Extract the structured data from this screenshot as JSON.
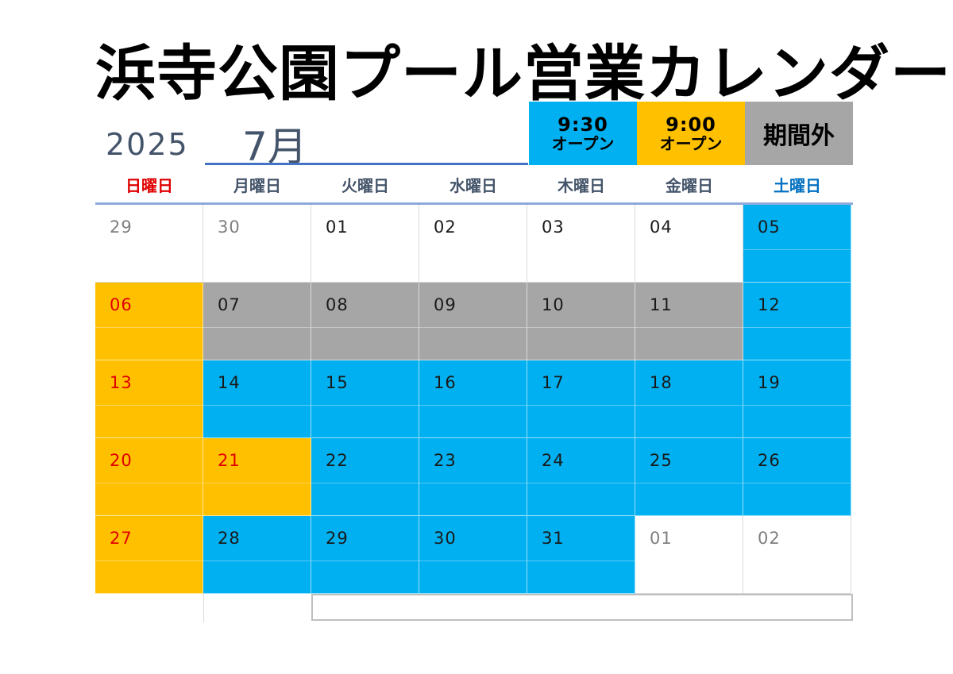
{
  "title": "浜寺公園プール営業カレンダー",
  "year": "2025",
  "month": "7月",
  "colors": {
    "blue": "#00b0f0",
    "orange": "#ffc000",
    "gray": "#a6a6a6",
    "white": "#ffffff",
    "sunday_red": "#e00000",
    "saturday_blue": "#0070c0",
    "muted": "#7f7f7f"
  },
  "legend": {
    "open930": {
      "time": "9:30",
      "label": "オープン"
    },
    "open900": {
      "time": "9:00",
      "label": "オープン"
    },
    "off": {
      "label": "期間外"
    }
  },
  "weekdays": [
    "日曜日",
    "月曜日",
    "火曜日",
    "水曜日",
    "木曜日",
    "金曜日",
    "土曜日"
  ],
  "weeks": [
    [
      {
        "day": "29",
        "type": "white",
        "text": "muted"
      },
      {
        "day": "30",
        "type": "white",
        "text": "muted"
      },
      {
        "day": "01",
        "type": "white",
        "text": "dark"
      },
      {
        "day": "02",
        "type": "white",
        "text": "dark"
      },
      {
        "day": "03",
        "type": "white",
        "text": "dark"
      },
      {
        "day": "04",
        "type": "white",
        "text": "dark"
      },
      {
        "day": "05",
        "type": "blue",
        "text": "dark"
      }
    ],
    [
      {
        "day": "06",
        "type": "orange",
        "text": "red"
      },
      {
        "day": "07",
        "type": "gray",
        "text": "dark"
      },
      {
        "day": "08",
        "type": "gray",
        "text": "dark"
      },
      {
        "day": "09",
        "type": "gray",
        "text": "dark"
      },
      {
        "day": "10",
        "type": "gray",
        "text": "dark"
      },
      {
        "day": "11",
        "type": "gray",
        "text": "dark"
      },
      {
        "day": "12",
        "type": "blue",
        "text": "dark"
      }
    ],
    [
      {
        "day": "13",
        "type": "orange",
        "text": "red"
      },
      {
        "day": "14",
        "type": "blue",
        "text": "dark"
      },
      {
        "day": "15",
        "type": "blue",
        "text": "dark"
      },
      {
        "day": "16",
        "type": "blue",
        "text": "dark"
      },
      {
        "day": "17",
        "type": "blue",
        "text": "dark"
      },
      {
        "day": "18",
        "type": "blue",
        "text": "dark"
      },
      {
        "day": "19",
        "type": "blue",
        "text": "dark"
      }
    ],
    [
      {
        "day": "20",
        "type": "orange",
        "text": "red"
      },
      {
        "day": "21",
        "type": "orange",
        "text": "red"
      },
      {
        "day": "22",
        "type": "blue",
        "text": "dark"
      },
      {
        "day": "23",
        "type": "blue",
        "text": "dark"
      },
      {
        "day": "24",
        "type": "blue",
        "text": "dark"
      },
      {
        "day": "25",
        "type": "blue",
        "text": "dark"
      },
      {
        "day": "26",
        "type": "blue",
        "text": "dark"
      }
    ],
    [
      {
        "day": "27",
        "type": "orange",
        "text": "red"
      },
      {
        "day": "28",
        "type": "blue",
        "text": "dark"
      },
      {
        "day": "29",
        "type": "blue",
        "text": "dark"
      },
      {
        "day": "30",
        "type": "blue",
        "text": "dark"
      },
      {
        "day": "31",
        "type": "blue",
        "text": "dark"
      },
      {
        "day": "01",
        "type": "white",
        "text": "muted"
      },
      {
        "day": "02",
        "type": "white",
        "text": "muted"
      }
    ]
  ]
}
